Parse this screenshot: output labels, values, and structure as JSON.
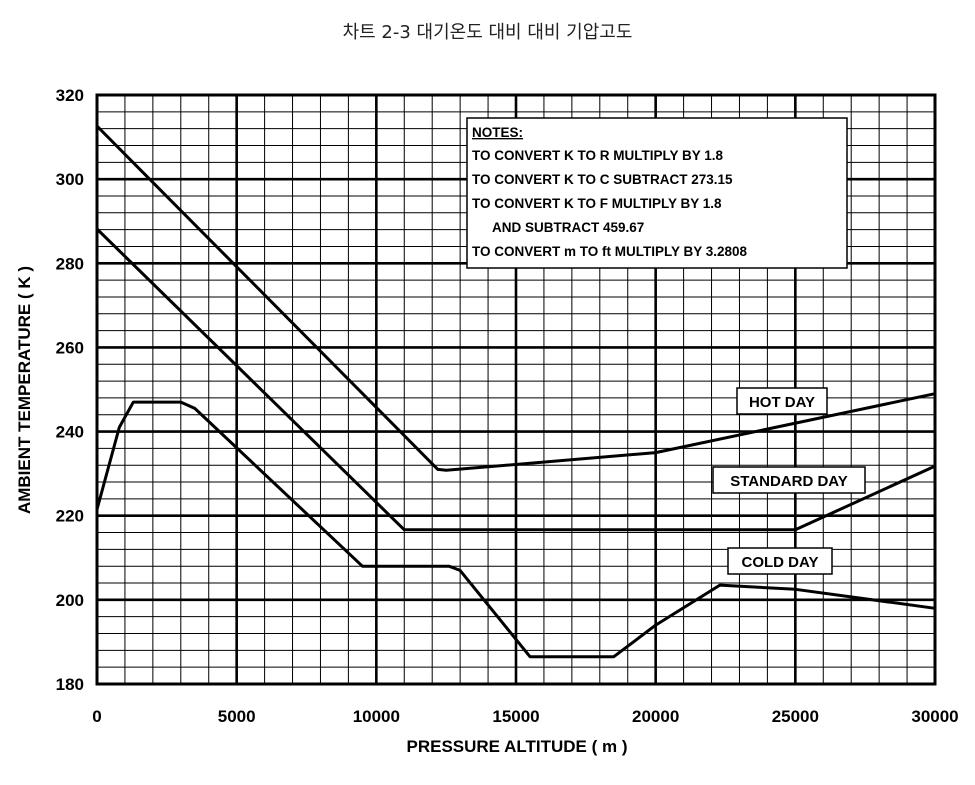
{
  "chart_data": {
    "type": "line",
    "title": "차트 2-3 대기온도 대비 대비 기압고도",
    "xlabel": "PRESSURE ALTITUDE ( m )",
    "ylabel": "AMBIENT TEMPERATURE ( K )",
    "xlim": [
      0,
      30000
    ],
    "ylim": [
      180,
      320
    ],
    "x_ticks": [
      0,
      5000,
      10000,
      15000,
      20000,
      25000,
      30000
    ],
    "y_ticks": [
      180,
      200,
      220,
      240,
      260,
      280,
      300,
      320
    ],
    "grid": true,
    "series": [
      {
        "name": "HOT DAY",
        "points": [
          [
            0,
            312.6
          ],
          [
            12200,
            231
          ],
          [
            12500,
            230.8
          ],
          [
            20000,
            235
          ],
          [
            30000,
            249
          ]
        ]
      },
      {
        "name": "STANDARD DAY",
        "points": [
          [
            0,
            288.15
          ],
          [
            11000,
            216.65
          ],
          [
            25000,
            216.65
          ],
          [
            30000,
            231.8
          ]
        ]
      },
      {
        "name": "COLD DAY",
        "points": [
          [
            0,
            221.5
          ],
          [
            800,
            241
          ],
          [
            1300,
            247
          ],
          [
            3000,
            247
          ],
          [
            3500,
            245.5
          ],
          [
            9500,
            208
          ],
          [
            12600,
            208
          ],
          [
            13000,
            207
          ],
          [
            15500,
            186.5
          ],
          [
            18500,
            186.5
          ],
          [
            20000,
            194
          ],
          [
            22300,
            203.5
          ],
          [
            25000,
            202.5
          ],
          [
            30000,
            198
          ]
        ]
      }
    ],
    "notes": [
      "NOTES:",
      "TO CONVERT K TO R MULTIPLY BY 1.8",
      "TO CONVERT K TO C SUBTRACT 273.15",
      "TO CONVERT K TO F MULTIPLY BY 1.8",
      "AND SUBTRACT 459.67",
      "TO CONVERT m TO ft MULTIPLY BY 3.2808"
    ]
  }
}
